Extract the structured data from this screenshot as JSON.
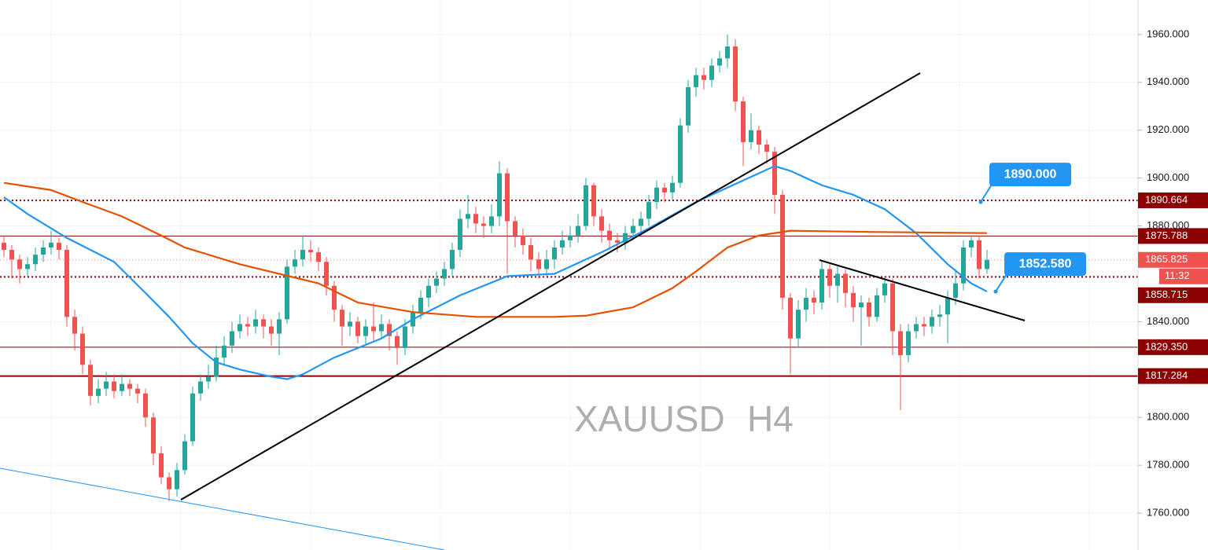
{
  "chart_data": {
    "type": "candlestick",
    "symbol": "XAUUSD",
    "interval": "H4",
    "ylim": [
      1744.6,
      1974.4
    ],
    "yticks": [
      {
        "value": 1760,
        "label": "1760.000"
      },
      {
        "value": 1780,
        "label": "1780.000"
      },
      {
        "value": 1800,
        "label": "1800.000"
      },
      {
        "value": 1840,
        "label": "1840.000"
      },
      {
        "value": 1880,
        "label": "1880.000"
      },
      {
        "value": 1900,
        "label": "1900.000"
      },
      {
        "value": 1920,
        "label": "1920.000"
      },
      {
        "value": 1940,
        "label": "1940.000"
      },
      {
        "value": 1960,
        "label": "1960.000"
      }
    ],
    "grid": true,
    "up_color": "#26a69a",
    "down_color": "#ef5350",
    "candles": {
      "open": [
        1873,
        1870,
        1866,
        1862,
        1864,
        1868,
        1871,
        1873,
        1870,
        1842,
        1835,
        1822,
        1809,
        1812,
        1815,
        1811,
        1814,
        1812,
        1810,
        1800,
        1785,
        1775,
        1770,
        1778,
        1790,
        1810,
        1815,
        1817,
        1825,
        1830,
        1836,
        1839,
        1838,
        1841,
        1838,
        1835,
        1841,
        1863,
        1866,
        1870,
        1869,
        1865,
        1855,
        1845,
        1838,
        1840,
        1834,
        1838,
        1836,
        1839,
        1834,
        1829,
        1838,
        1844,
        1850,
        1855,
        1858,
        1862,
        1870,
        1883,
        1885,
        1881,
        1880,
        1884,
        1902,
        1882,
        1876,
        1872,
        1866,
        1862,
        1866,
        1871,
        1874,
        1876,
        1880,
        1897,
        1884,
        1878,
        1874,
        1873,
        1877,
        1880,
        1883,
        1890,
        1896,
        1894,
        1898,
        1922,
        1938,
        1943,
        1941,
        1947,
        1950,
        1955,
        1932,
        1915,
        1920,
        1914,
        1911,
        1893,
        1850,
        1833,
        1845,
        1850,
        1848,
        1862,
        1855,
        1860,
        1852,
        1846,
        1848,
        1842,
        1851,
        1856,
        1836,
        1826,
        1836,
        1839,
        1838,
        1842,
        1843,
        1850,
        1856,
        1871,
        1874,
        1862
      ],
      "high": [
        1876,
        1872,
        1868,
        1867,
        1871,
        1874,
        1878,
        1875,
        1872,
        1845,
        1838,
        1824,
        1816,
        1819,
        1818,
        1818,
        1816,
        1814,
        1812,
        1802,
        1788,
        1777,
        1781,
        1793,
        1813,
        1818,
        1822,
        1830,
        1834,
        1840,
        1843,
        1842,
        1845,
        1843,
        1841,
        1844,
        1866,
        1870,
        1876,
        1874,
        1871,
        1867,
        1857,
        1847,
        1844,
        1842,
        1841,
        1848,
        1843,
        1841,
        1836,
        1841,
        1847,
        1853,
        1858,
        1861,
        1865,
        1873,
        1887,
        1893,
        1888,
        1884,
        1889,
        1907,
        1904,
        1884,
        1879,
        1875,
        1869,
        1870,
        1874,
        1878,
        1880,
        1885,
        1900,
        1898,
        1887,
        1881,
        1877,
        1880,
        1883,
        1886,
        1893,
        1899,
        1898,
        1901,
        1925,
        1941,
        1946,
        1946,
        1950,
        1953,
        1960,
        1958,
        1934,
        1927,
        1922,
        1916,
        1913,
        1895,
        1852,
        1849,
        1854,
        1853,
        1865,
        1864,
        1863,
        1862,
        1855,
        1851,
        1850,
        1854,
        1859,
        1858,
        1839,
        1839,
        1842,
        1842,
        1845,
        1847,
        1853,
        1862,
        1874,
        1876,
        1876,
        1870
      ],
      "low": [
        1867,
        1858,
        1856,
        1859,
        1861,
        1865,
        1868,
        1866,
        1838,
        1828,
        1818,
        1805,
        1806,
        1809,
        1808,
        1809,
        1809,
        1806,
        1796,
        1780,
        1772,
        1765,
        1767,
        1776,
        1788,
        1807,
        1812,
        1815,
        1822,
        1827,
        1833,
        1834,
        1835,
        1833,
        1830,
        1826,
        1839,
        1860,
        1863,
        1865,
        1861,
        1851,
        1840,
        1830,
        1834,
        1831,
        1830,
        1832,
        1833,
        1828,
        1822,
        1826,
        1835,
        1841,
        1846,
        1852,
        1855,
        1859,
        1867,
        1879,
        1877,
        1875,
        1877,
        1880,
        1860,
        1871,
        1868,
        1861,
        1858,
        1859,
        1862,
        1868,
        1871,
        1873,
        1878,
        1880,
        1873,
        1870,
        1869,
        1870,
        1874,
        1876,
        1880,
        1887,
        1890,
        1891,
        1896,
        1919,
        1934,
        1937,
        1938,
        1944,
        1946,
        1928,
        1905,
        1912,
        1910,
        1906,
        1885,
        1845,
        1818,
        1829,
        1840,
        1843,
        1845,
        1850,
        1848,
        1846,
        1840,
        1830,
        1838,
        1840,
        1848,
        1826,
        1803,
        1823,
        1833,
        1834,
        1835,
        1838,
        1831,
        1847,
        1853,
        1867,
        1858,
        1860
      ],
      "close": [
        1870,
        1866,
        1862,
        1864,
        1868,
        1871,
        1873,
        1870,
        1842,
        1835,
        1822,
        1809,
        1812,
        1815,
        1811,
        1814,
        1812,
        1810,
        1800,
        1785,
        1775,
        1770,
        1778,
        1790,
        1810,
        1815,
        1817,
        1825,
        1830,
        1836,
        1839,
        1838,
        1841,
        1838,
        1835,
        1841,
        1863,
        1866,
        1870,
        1869,
        1865,
        1855,
        1845,
        1838,
        1840,
        1834,
        1838,
        1836,
        1839,
        1834,
        1829,
        1838,
        1844,
        1850,
        1855,
        1858,
        1862,
        1870,
        1883,
        1885,
        1881,
        1880,
        1884,
        1902,
        1882,
        1876,
        1872,
        1866,
        1862,
        1866,
        1871,
        1874,
        1876,
        1880,
        1897,
        1884,
        1878,
        1874,
        1873,
        1877,
        1880,
        1883,
        1890,
        1896,
        1894,
        1898,
        1922,
        1938,
        1943,
        1941,
        1947,
        1950,
        1955,
        1932,
        1915,
        1920,
        1914,
        1911,
        1893,
        1850,
        1833,
        1845,
        1850,
        1848,
        1862,
        1855,
        1860,
        1852,
        1846,
        1848,
        1842,
        1851,
        1856,
        1836,
        1826,
        1836,
        1839,
        1838,
        1842,
        1843,
        1850,
        1856,
        1871,
        1874,
        1862,
        1865.825
      ]
    },
    "series": [
      {
        "type": "line",
        "color": "#2196f3",
        "x": [
          0,
          3,
          8,
          14,
          18,
          21,
          24,
          27,
          30,
          34,
          36,
          38,
          42,
          48,
          52,
          58,
          64,
          70,
          76,
          82,
          88,
          94,
          98,
          100,
          104,
          108,
          112,
          116,
          120,
          123,
          125
        ],
        "values": [
          1892,
          1885,
          1875,
          1865,
          1852,
          1842,
          1831,
          1823,
          1820,
          1817,
          1816,
          1818,
          1825,
          1833,
          1841,
          1851,
          1859,
          1860,
          1869,
          1879,
          1890,
          1899,
          1905,
          1903,
          1897,
          1893,
          1887,
          1877,
          1864,
          1856,
          1852.58
        ]
      },
      {
        "type": "line",
        "color": "#e65100",
        "x": [
          0,
          6,
          10,
          15,
          20,
          23,
          30,
          40,
          45,
          52,
          60,
          70,
          74,
          80,
          85,
          88,
          92,
          96,
          100,
          110,
          125
        ],
        "values": [
          1898,
          1895,
          1890,
          1884,
          1876,
          1871,
          1864,
          1856,
          1848,
          1844,
          1842,
          1842,
          1842.5,
          1846,
          1854,
          1861,
          1871,
          1876,
          1878,
          1877.5,
          1877
        ]
      }
    ],
    "levels": [
      {
        "value": 1890.664,
        "label": "1890.664",
        "style": "dotted",
        "color": "#8b0000"
      },
      {
        "value": 1875.788,
        "label": "1875.788",
        "style": "solid",
        "color": "#8b0000"
      },
      {
        "value": 1858.715,
        "label": "1858.715",
        "style": "dotted",
        "color": "#8b0000"
      },
      {
        "value": 1829.35,
        "label": "1829.350",
        "style": "solid",
        "color": "#8b0000"
      },
      {
        "value": 1817.284,
        "label": "1817.284",
        "style": "solid",
        "color": "#8b0000"
      }
    ],
    "current_price": {
      "value": 1865.825,
      "label": "1865.825",
      "countdown": "11:32",
      "color": "#ef5350"
    },
    "callouts": [
      {
        "value": 1890,
        "label": "1890.000"
      },
      {
        "value": 1852.58,
        "label": "1852.580"
      }
    ]
  }
}
